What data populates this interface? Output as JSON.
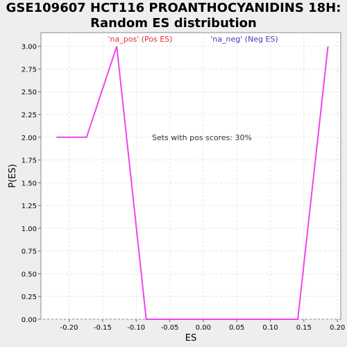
{
  "chart_data": {
    "type": "line",
    "title_line1": "GSE109607 HCT116 PROANTHOCYANIDINS 18H:",
    "title_line2": "Random ES distribution",
    "xlabel": "ES",
    "ylabel": "P(ES)",
    "xlim": [
      -0.242,
      0.205
    ],
    "ylim": [
      0,
      3.15
    ],
    "xticks": [
      -0.2,
      -0.15,
      -0.1,
      -0.05,
      0.0,
      0.05,
      0.1,
      0.15,
      0.2
    ],
    "xtick_labels": [
      "-0.20",
      "-0.15",
      "-0.10",
      "-0.05",
      "0.00",
      "0.05",
      "0.10",
      "0.15",
      "0.20"
    ],
    "yticks": [
      0,
      0.25,
      0.5,
      0.75,
      1.0,
      1.25,
      1.5,
      1.75,
      2.0,
      2.25,
      2.5,
      2.75,
      3.0
    ],
    "ytick_labels": [
      "0.00",
      "0.25",
      "0.50",
      "0.75",
      "1.00",
      "1.25",
      "1.50",
      "1.75",
      "2.00",
      "2.25",
      "2.50",
      "2.75",
      "3.00"
    ],
    "grid": true,
    "legend": {
      "pos_label": "'na_pos' (Pos ES)",
      "neg_label": "'na_neg' (Neg ES)",
      "pos_color": "#e03030",
      "neg_color": "#4040c0"
    },
    "annotation": "Sets with pos scores: 30%",
    "series": [
      {
        "color": "#ee44ee",
        "x": [
          -0.219,
          -0.174,
          -0.129,
          -0.085,
          0.141,
          0.186
        ],
        "y": [
          2.0,
          2.0,
          3.0,
          0.0,
          0.0,
          3.0
        ]
      }
    ]
  }
}
